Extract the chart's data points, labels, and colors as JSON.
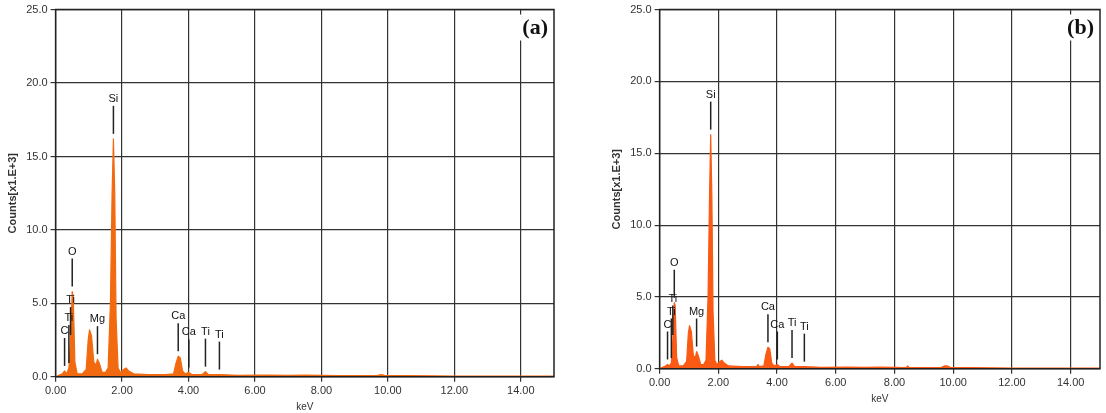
{
  "chart_data": [
    {
      "type": "area",
      "title": "(a)",
      "xlabel": "keV",
      "ylabel": "Counts[x1.E+3]",
      "grid": true,
      "legend": false,
      "xlim": [
        0,
        15
      ],
      "xticks": [
        {
          "value": 0,
          "label": "0.00"
        },
        {
          "value": 2,
          "label": "2.00"
        },
        {
          "value": 4,
          "label": "4.00"
        },
        {
          "value": 6,
          "label": "6.00"
        },
        {
          "value": 8,
          "label": "8.00"
        },
        {
          "value": 10,
          "label": "10.00"
        },
        {
          "value": 12,
          "label": "12.00"
        },
        {
          "value": 14,
          "label": "14.00"
        }
      ],
      "ylim": [
        0,
        25
      ],
      "yticks": [
        {
          "value": 0,
          "label": "0.0"
        },
        {
          "value": 5,
          "label": "5.0"
        },
        {
          "value": 10,
          "label": "10.0"
        },
        {
          "value": 15,
          "label": "15.0"
        },
        {
          "value": 20,
          "label": "20.0"
        },
        {
          "value": 25,
          "label": "25.0"
        }
      ],
      "x": [
        0,
        0.1,
        0.2,
        0.27,
        0.33,
        0.4,
        0.45,
        0.5,
        0.53,
        0.58,
        0.65,
        0.8,
        0.92,
        0.98,
        1.02,
        1.08,
        1.15,
        1.22,
        1.26,
        1.32,
        1.4,
        1.5,
        1.58,
        1.65,
        1.7,
        1.74,
        1.78,
        1.82,
        1.88,
        1.95,
        2.05,
        2.12,
        2.2,
        2.35,
        2.8,
        3.3,
        3.55,
        3.62,
        3.69,
        3.75,
        3.82,
        3.9,
        4.01,
        4.1,
        4.4,
        4.51,
        4.6,
        4.93,
        5.5,
        6.4,
        7,
        7.5,
        8,
        8.5,
        9.7,
        9.8,
        9.9,
        12,
        15
      ],
      "series": [
        {
          "color": "#f26a10",
          "values": [
            0,
            0.1,
            0.2,
            0.4,
            0.2,
            0.6,
            2.5,
            5.8,
            5.5,
            1,
            0.2,
            0.2,
            0.5,
            2.5,
            3.2,
            2.8,
            1,
            0.8,
            1.2,
            0.9,
            0.3,
            0.3,
            0.6,
            5,
            12.5,
            16.2,
            12.5,
            4,
            0.6,
            0.3,
            0.5,
            0.6,
            0.4,
            0.2,
            0.15,
            0.15,
            0.2,
            0.9,
            1.4,
            1.3,
            0.4,
            0.2,
            0.3,
            0.15,
            0.15,
            0.35,
            0.15,
            0.15,
            0.1,
            0.12,
            0.1,
            0.12,
            0.1,
            0.08,
            0.1,
            0.15,
            0.1,
            0.05,
            0.05
          ]
        }
      ],
      "annotations": [
        {
          "text": "C",
          "x": 0.27,
          "y": 0.4
        },
        {
          "text": "Ti",
          "x": 0.4,
          "y": 0.6
        },
        {
          "text": "Ti",
          "x": 0.45,
          "y": 2.5
        },
        {
          "text": "O",
          "x": 0.5,
          "y": 5.8
        },
        {
          "text": "Mg",
          "x": 1.26,
          "y": 1.2
        },
        {
          "text": "Si",
          "x": 1.74,
          "y": 16.2
        },
        {
          "text": "Ca",
          "x": 3.69,
          "y": 1.4
        },
        {
          "text": "Ca",
          "x": 4.01,
          "y": 0.3
        },
        {
          "text": "Ti",
          "x": 4.51,
          "y": 0.35
        },
        {
          "text": "Ti",
          "x": 4.93,
          "y": 0.15
        }
      ]
    },
    {
      "type": "area",
      "title": "(b)",
      "xlabel": "keV",
      "ylabel": "Counts[x1.E+3]",
      "grid": true,
      "legend": false,
      "xlim": [
        0,
        15
      ],
      "xticks": [
        {
          "value": 0,
          "label": "0.00"
        },
        {
          "value": 2,
          "label": "2.00"
        },
        {
          "value": 4,
          "label": "4.00"
        },
        {
          "value": 6,
          "label": "6.00"
        },
        {
          "value": 8,
          "label": "8.00"
        },
        {
          "value": 10,
          "label": "10.00"
        },
        {
          "value": 12,
          "label": "12.00"
        },
        {
          "value": 14,
          "label": "14.00"
        }
      ],
      "ylim": [
        0,
        25
      ],
      "yticks": [
        {
          "value": 0,
          "label": "0.0"
        },
        {
          "value": 5,
          "label": "5.0"
        },
        {
          "value": 10,
          "label": "10.0"
        },
        {
          "value": 15,
          "label": "15.0"
        },
        {
          "value": 20,
          "label": "20.0"
        },
        {
          "value": 25,
          "label": "25.0"
        }
      ],
      "x": [
        0,
        0.1,
        0.2,
        0.27,
        0.33,
        0.4,
        0.45,
        0.5,
        0.53,
        0.58,
        0.65,
        0.8,
        0.92,
        0.98,
        1.02,
        1.08,
        1.15,
        1.22,
        1.26,
        1.32,
        1.4,
        1.5,
        1.58,
        1.65,
        1.7,
        1.74,
        1.78,
        1.82,
        1.88,
        1.95,
        2.05,
        2.12,
        2.2,
        2.35,
        2.8,
        3.3,
        3.35,
        3.4,
        3.55,
        3.62,
        3.69,
        3.75,
        3.82,
        3.9,
        4.01,
        4.1,
        4.4,
        4.51,
        4.6,
        4.93,
        5.5,
        6.4,
        7,
        7.5,
        8,
        8.4,
        8.45,
        8.5,
        9.6,
        9.7,
        9.8,
        9.9,
        12,
        15
      ],
      "series": [
        {
          "color": "#fa5a14",
          "values": [
            0,
            0.1,
            0.2,
            0.3,
            0.2,
            0.4,
            2,
            4.6,
            4.4,
            0.8,
            0.2,
            0.2,
            0.5,
            2.5,
            3,
            2.6,
            0.9,
            0.8,
            1.2,
            0.9,
            0.3,
            0.3,
            0.6,
            5,
            12,
            16.3,
            12,
            4,
            0.6,
            0.3,
            0.5,
            0.6,
            0.4,
            0.2,
            0.15,
            0.15,
            0.3,
            0.15,
            0.2,
            1,
            1.5,
            1.4,
            0.4,
            0.2,
            0.3,
            0.15,
            0.15,
            0.4,
            0.15,
            0.15,
            0.1,
            0.12,
            0.1,
            0.12,
            0.1,
            0.08,
            0.2,
            0.08,
            0.1,
            0.2,
            0.2,
            0.1,
            0.05,
            0.05
          ]
        }
      ],
      "annotations": [
        {
          "text": "C",
          "x": 0.27,
          "y": 0.3
        },
        {
          "text": "Ti",
          "x": 0.4,
          "y": 0.4
        },
        {
          "text": "Ti",
          "x": 0.45,
          "y": 2
        },
        {
          "text": "O",
          "x": 0.5,
          "y": 4.6
        },
        {
          "text": "Mg",
          "x": 1.26,
          "y": 1.2
        },
        {
          "text": "Si",
          "x": 1.74,
          "y": 16.3
        },
        {
          "text": "Ca",
          "x": 3.69,
          "y": 1.5
        },
        {
          "text": "Ca",
          "x": 4.01,
          "y": 0.3
        },
        {
          "text": "Ti",
          "x": 4.51,
          "y": 0.4
        },
        {
          "text": "Ti",
          "x": 4.93,
          "y": 0.15
        }
      ]
    }
  ]
}
